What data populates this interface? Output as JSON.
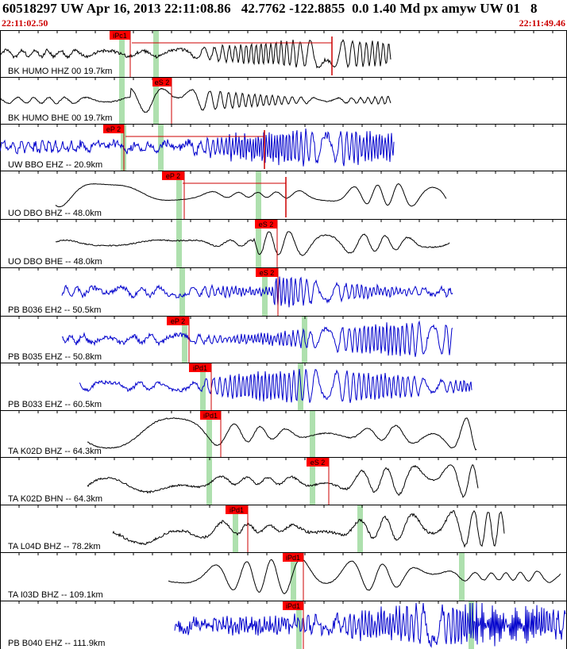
{
  "header": {
    "title": "60518297 UW Apr 16, 2013 22:11:08.86   42.7762 -122.8855  0.0 1.40 Md px amyw UW 01   8",
    "start_time": "22:11:02.50",
    "end_time": "22:11:49.46"
  },
  "colors": {
    "panel_border": "#000000",
    "trace_black": "#000000",
    "trace_blue": "#0000cc",
    "pick_flag": "#ff0000",
    "pick_line": "#cc0000",
    "predicted_band": "#aee0ae",
    "time_text": "#cc0000"
  },
  "panels": [
    {
      "label": "BK HUMO HHZ 00 19.7km",
      "color": "black",
      "picks": [
        {
          "text": "iPc1"
        }
      ]
    },
    {
      "label": "BK HUMO BHE 00 19.7km",
      "color": "black",
      "picks": [
        {
          "text": "eS 2"
        }
      ]
    },
    {
      "label": "UW BBO EHZ -- 20.9km",
      "color": "blue",
      "picks": [
        {
          "text": "eP 2"
        }
      ]
    },
    {
      "label": "UO DBO BHZ -- 48.0km",
      "color": "black",
      "picks": [
        {
          "text": "eP 2"
        }
      ]
    },
    {
      "label": "UO DBO BHE -- 48.0km",
      "color": "black",
      "picks": [
        {
          "text": "eS 2"
        }
      ]
    },
    {
      "label": "PB B036 EH2 -- 50.5km",
      "color": "blue",
      "picks": [
        {
          "text": "eS 2"
        }
      ]
    },
    {
      "label": "PB B035 EHZ -- 50.8km",
      "color": "blue",
      "picks": [
        {
          "text": "eP 2"
        }
      ]
    },
    {
      "label": "PB B033 EHZ -- 60.5km",
      "color": "blue",
      "picks": [
        {
          "text": "iPd1"
        }
      ]
    },
    {
      "label": "TA K02D BHZ -- 64.3km",
      "color": "black",
      "picks": [
        {
          "text": "iPd1"
        }
      ]
    },
    {
      "label": "TA K02D BHN -- 64.3km",
      "color": "black",
      "picks": [
        {
          "text": "eS 2"
        }
      ]
    },
    {
      "label": "TA L04D BHZ -- 78.2km",
      "color": "black",
      "picks": [
        {
          "text": "iPd1"
        }
      ]
    },
    {
      "label": "TA I03D BHZ -- 109.1km",
      "color": "black",
      "picks": [
        {
          "text": "iPd1"
        }
      ]
    },
    {
      "label": "PB B040 EHZ -- 111.9km",
      "color": "blue",
      "picks": [
        {
          "text": "iPd1"
        }
      ]
    }
  ]
}
